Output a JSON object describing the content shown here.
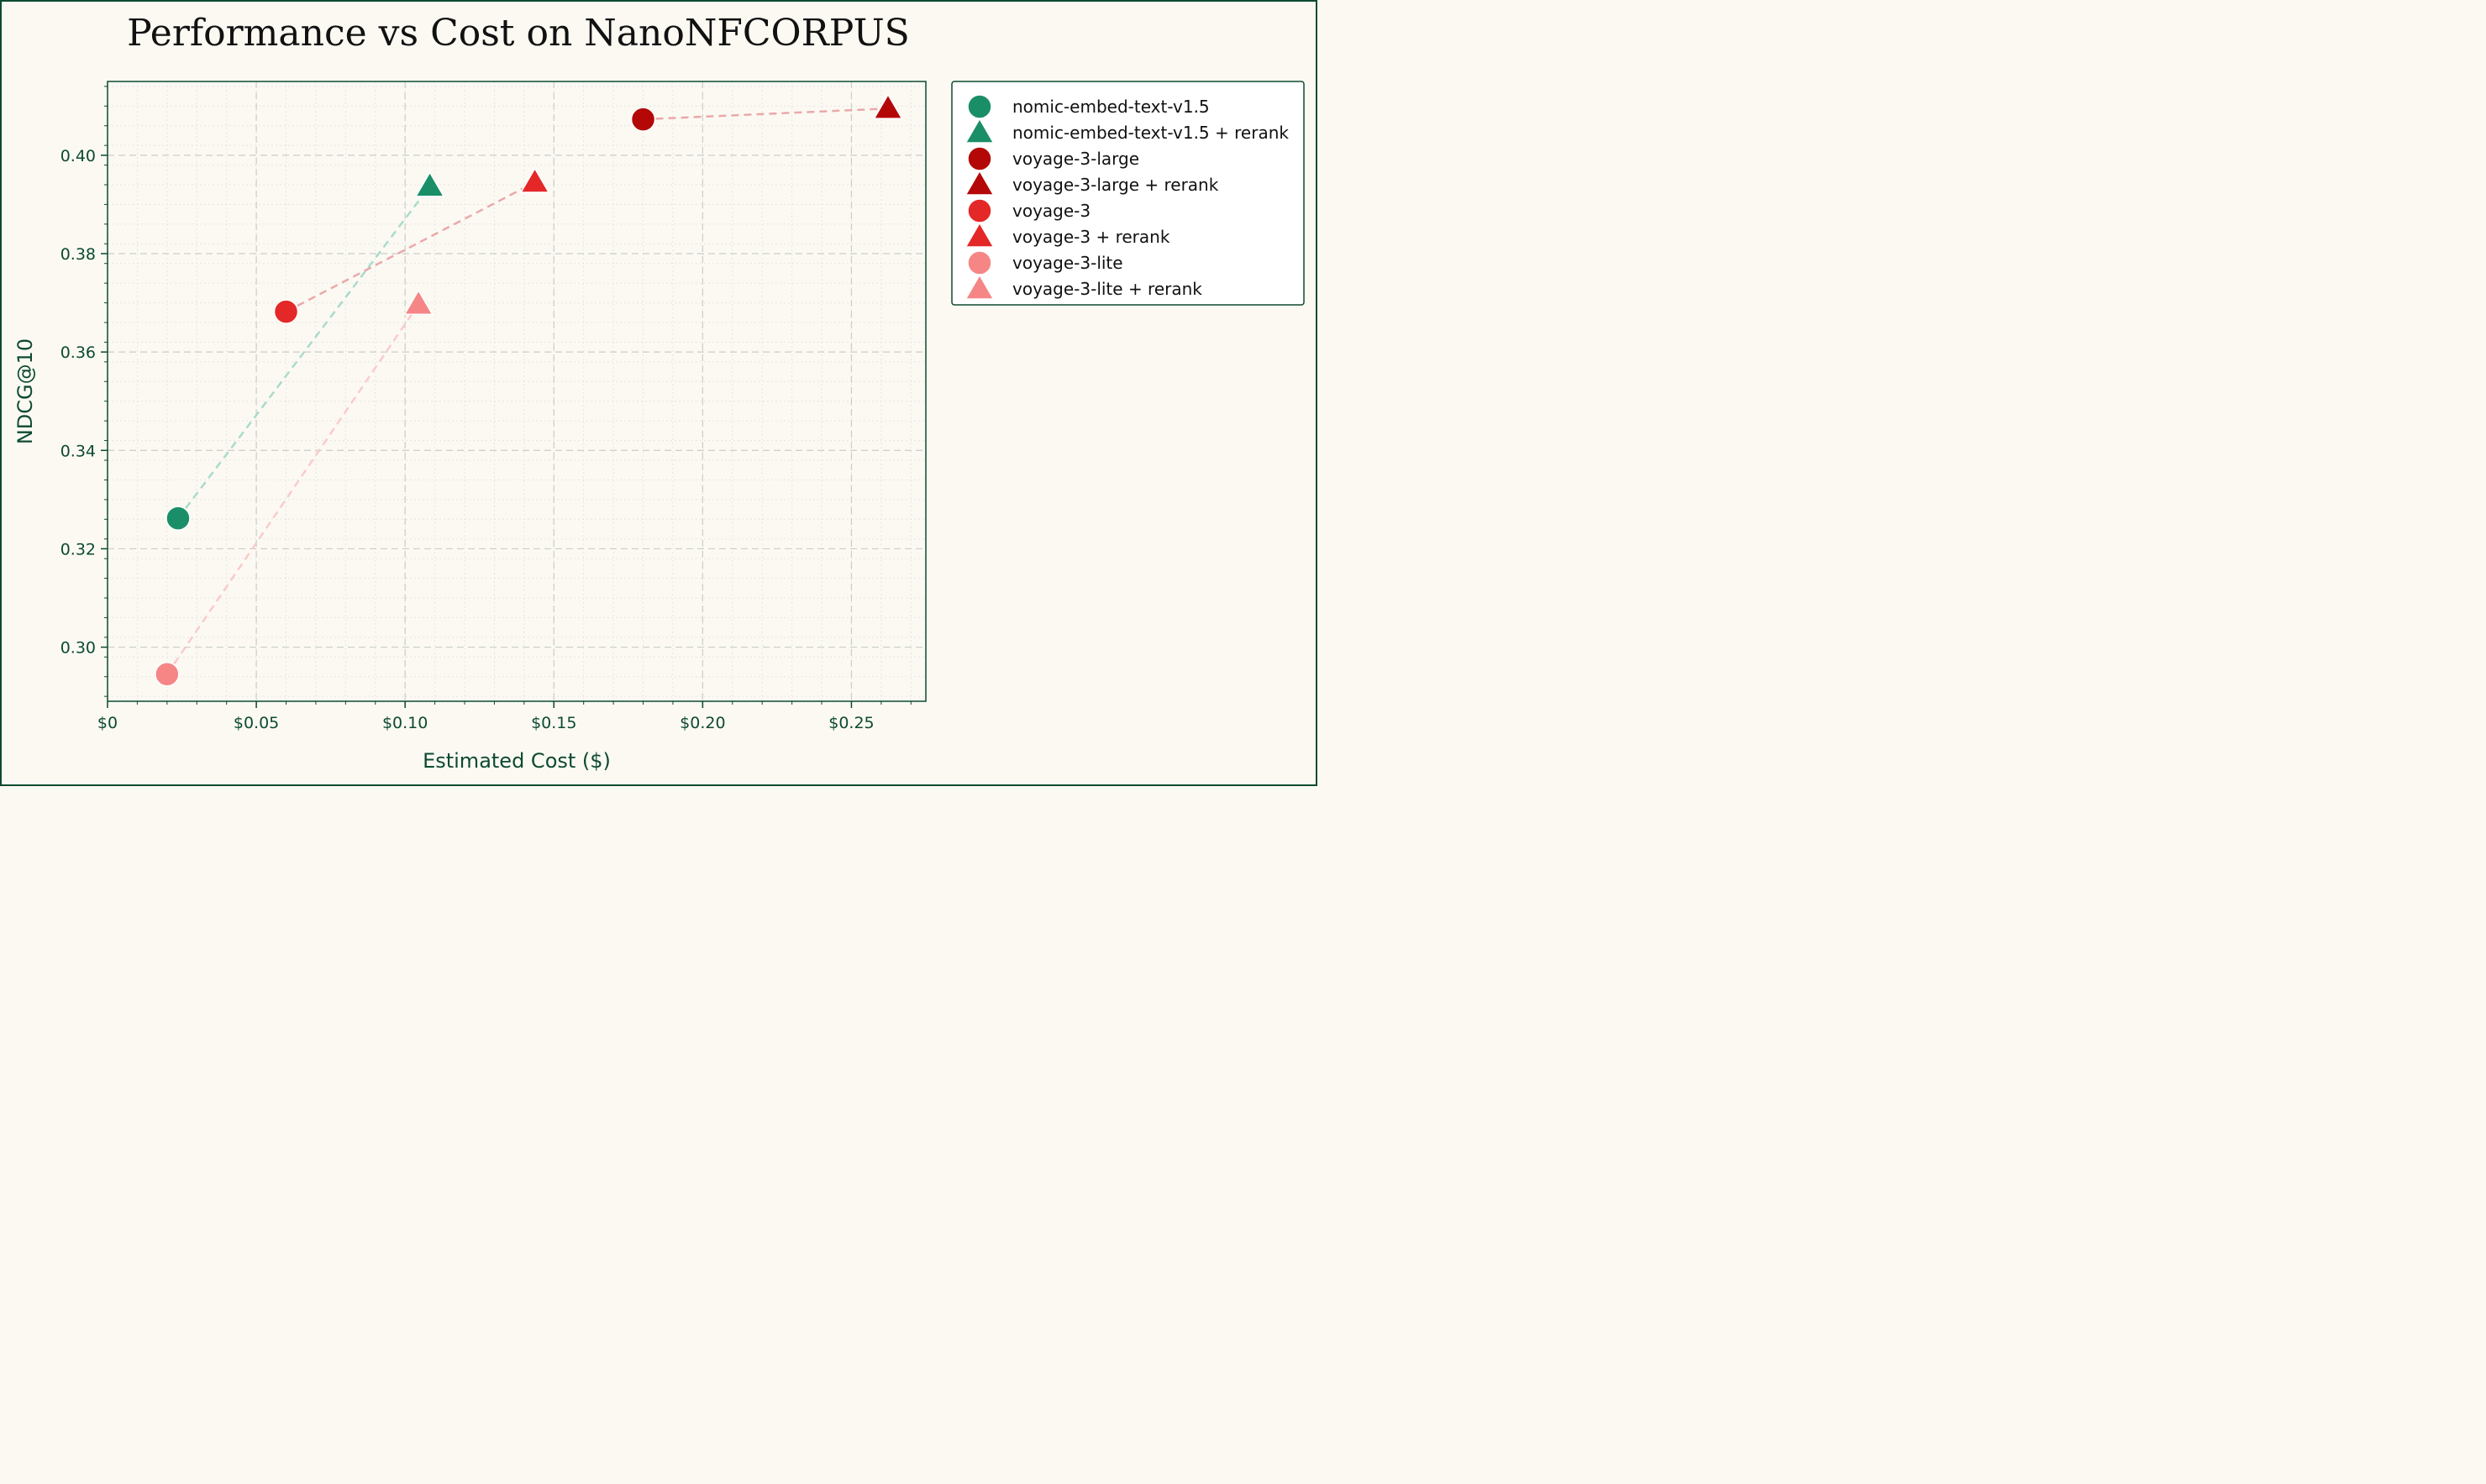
{
  "chart_data": {
    "type": "scatter",
    "title": "Performance vs Cost on NanoNFCORPUS",
    "xlabel": "Estimated Cost ($)",
    "ylabel": "NDCG@10",
    "xlim": [
      0,
      0.275
    ],
    "ylim": [
      0.289,
      0.415
    ],
    "x_ticks": [
      0,
      0.05,
      0.1,
      0.15,
      0.2,
      0.25
    ],
    "x_tick_labels": [
      "$0",
      "$0.05",
      "$0.10",
      "$0.15",
      "$0.20",
      "$0.25"
    ],
    "y_ticks": [
      0.3,
      0.32,
      0.34,
      0.36,
      0.38,
      0.4
    ],
    "y_tick_labels": [
      "0.30",
      "0.32",
      "0.34",
      "0.36",
      "0.38",
      "0.40"
    ],
    "grid": true,
    "legend_position": "outside-right-top",
    "series": [
      {
        "name": "nomic-embed-text-v1.5",
        "marker": "circle",
        "color": "#1a8f67",
        "x": 0.0237,
        "y": 0.3262
      },
      {
        "name": "nomic-embed-text-v1.5 + rerank",
        "marker": "triangle",
        "color": "#1a8f67",
        "x": 0.1083,
        "y": 0.3937
      },
      {
        "name": "voyage-3-large",
        "marker": "circle",
        "color": "#b40808",
        "x": 0.18,
        "y": 0.4073
      },
      {
        "name": "voyage-3-large + rerank",
        "marker": "triangle",
        "color": "#b40808",
        "x": 0.2623,
        "y": 0.4095
      },
      {
        "name": "voyage-3",
        "marker": "circle",
        "color": "#e42828",
        "x": 0.06,
        "y": 0.3682
      },
      {
        "name": "voyage-3 + rerank",
        "marker": "triangle",
        "color": "#e42828",
        "x": 0.1436,
        "y": 0.3945
      },
      {
        "name": "voyage-3-lite",
        "marker": "circle",
        "color": "#f68686",
        "x": 0.02,
        "y": 0.2945
      },
      {
        "name": "voyage-3-lite + rerank",
        "marker": "triangle",
        "color": "#f68686",
        "x": 0.1045,
        "y": 0.3697
      }
    ],
    "connectors": [
      {
        "from": 0,
        "to": 1,
        "color": "#a9dbcb"
      },
      {
        "from": 2,
        "to": 3,
        "color": "#eaa9a9"
      },
      {
        "from": 4,
        "to": 5,
        "color": "#eaa9a9"
      },
      {
        "from": 6,
        "to": 7,
        "color": "#fbcaca"
      }
    ]
  }
}
